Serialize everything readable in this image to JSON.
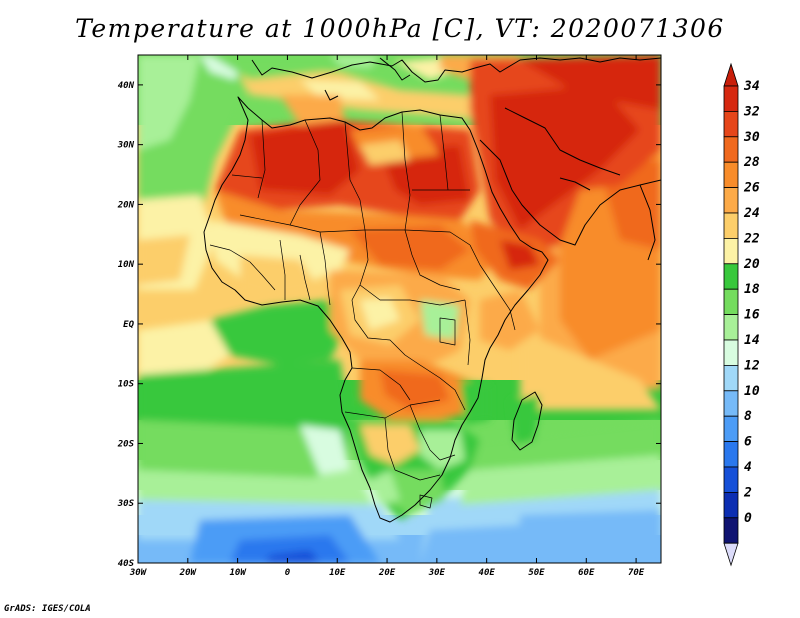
{
  "title": "Temperature at 1000hPa [C], VT: 2020071306",
  "credit": "GrADS: IGES/COLA",
  "map": {
    "lon_range": [
      -30,
      75
    ],
    "lat_range": [
      -40,
      45
    ],
    "lon_ticks": [
      "30W",
      "20W",
      "10W",
      "0",
      "10E",
      "20E",
      "30E",
      "40E",
      "50E",
      "60E",
      "70E"
    ],
    "lat_ticks": [
      "40N",
      "30N",
      "20N",
      "10N",
      "EQ",
      "10S",
      "20S",
      "30S",
      "40S"
    ]
  },
  "colorbar": {
    "labels": [
      "34",
      "32",
      "30",
      "28",
      "26",
      "24",
      "22",
      "20",
      "18",
      "16",
      "14",
      "12",
      "10",
      "8",
      "6",
      "4",
      "2",
      "0"
    ],
    "colors": [
      "#d62810",
      "#e6461a",
      "#f0691e",
      "#f88c2a",
      "#fcaa48",
      "#fcce6a",
      "#fcf2a6",
      "#38c83c",
      "#74dc5e",
      "#a8f098",
      "#d8fce0",
      "#a0d8f8",
      "#76baf8",
      "#4c9cf6",
      "#2a78ee",
      "#1650d8",
      "#0c2eb2",
      "#101472"
    ],
    "top_color": "#c81e0a",
    "bottom_color": "#dcdcfa"
  }
}
